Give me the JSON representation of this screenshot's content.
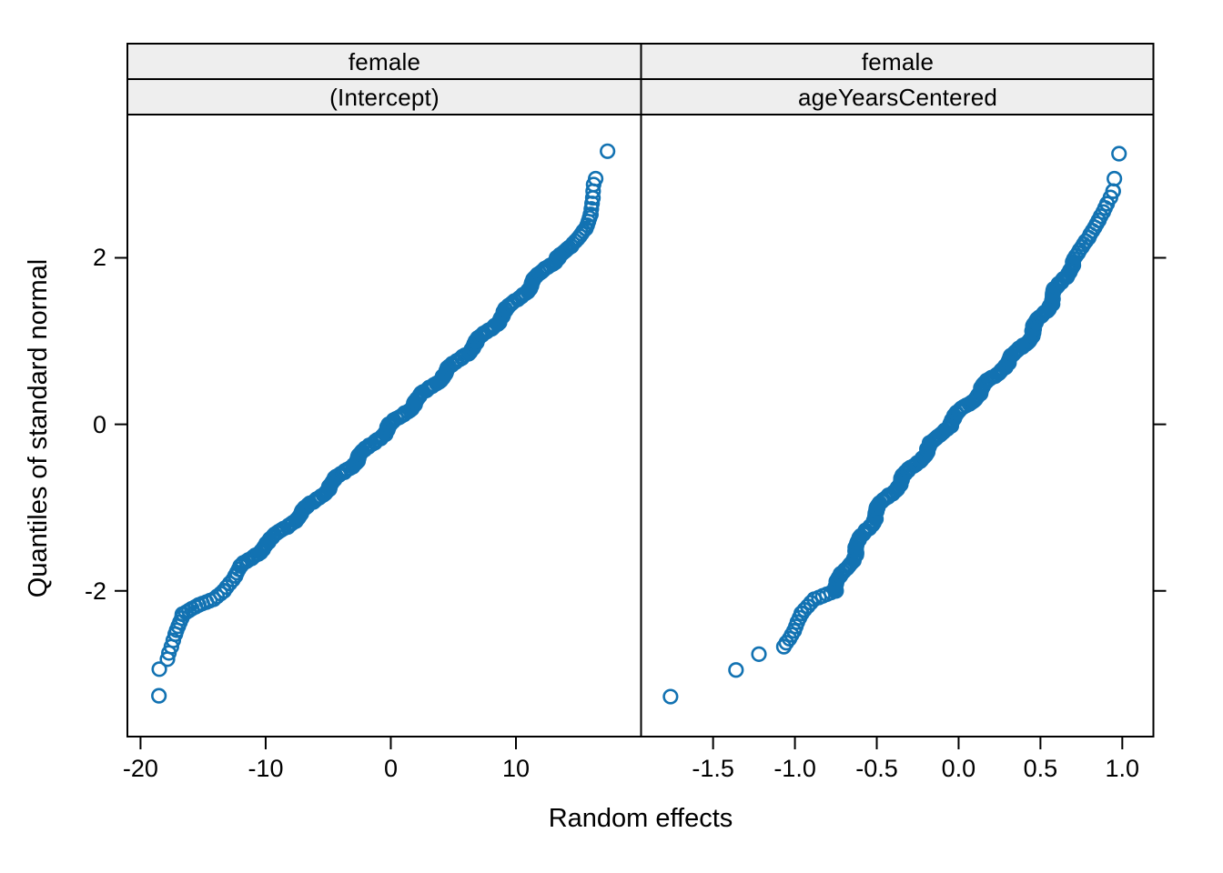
{
  "figure": {
    "background": "#ffffff",
    "border_color": "#000000",
    "strip_fill": "#eeeeee"
  },
  "chart_data": {
    "type": "scatter",
    "subtype": "qq-plot-lattice",
    "title": "",
    "xlabel": "Random effects",
    "ylabel": "Quantiles of standard normal",
    "grid": "off",
    "legend": "none",
    "ylim": [
      -3.75,
      3.72
    ],
    "y_ticks": [
      -2,
      0,
      2
    ],
    "y_tick_labels": [
      "-2",
      "0",
      "2"
    ],
    "style": {
      "color": "#1272b2",
      "marker": "open-circle",
      "marker_radius_px": 7.3,
      "marker_stroke_px": 2.6,
      "strip_fill": "#eeeeee",
      "line_color": "#000000"
    },
    "segment_format": [
      "x_start",
      "y_start",
      "x_end",
      "y_end",
      "n_points"
    ],
    "panels": [
      {
        "strip_labels": [
          "female",
          "(Intercept)"
        ],
        "xlim": [
          -21.05,
          20.0
        ],
        "x_ticks": [
          -20,
          -10,
          0,
          10
        ],
        "x_tick_labels": [
          "-20",
          "-10",
          "0",
          "10"
        ],
        "jitter_x": 0.3,
        "curve_segments": [
          [
            -17.9,
            -2.82,
            -17.3,
            -2.52,
            5
          ],
          [
            -17.3,
            -2.52,
            -16.6,
            -2.28,
            6
          ],
          [
            -16.6,
            -2.28,
            -15.3,
            -2.17,
            6
          ],
          [
            -15.3,
            -2.17,
            -14.2,
            -2.1,
            5
          ],
          [
            -14.2,
            -2.1,
            -13.4,
            -2.0,
            4
          ],
          [
            -13.4,
            -2.0,
            -12.4,
            -1.82,
            5
          ],
          [
            -12.4,
            -1.82,
            -11.9,
            -1.7,
            4
          ],
          [
            -11.9,
            -1.7,
            -6.6,
            -1.0,
            40
          ],
          [
            -6.6,
            -1.0,
            0.1,
            0.0,
            60
          ],
          [
            0.1,
            0.0,
            7.0,
            1.0,
            60
          ],
          [
            7.0,
            1.0,
            13.2,
            2.0,
            55
          ],
          [
            13.2,
            2.0,
            14.5,
            2.14,
            9
          ],
          [
            14.5,
            2.14,
            15.5,
            2.35,
            8
          ],
          [
            15.5,
            2.35,
            15.95,
            2.52,
            5
          ],
          [
            15.95,
            2.52,
            16.2,
            2.72,
            4
          ],
          [
            16.2,
            2.72,
            16.3,
            2.88,
            3
          ]
        ],
        "outlier_points": [
          [
            -18.53,
            -3.26
          ],
          [
            -18.5,
            -2.94
          ],
          [
            16.37,
            2.95
          ],
          [
            17.32,
            3.28
          ]
        ]
      },
      {
        "strip_labels": [
          "female",
          "ageYearsCentered"
        ],
        "xlim": [
          -1.94,
          1.19
        ],
        "x_ticks": [
          -1.5,
          -1.0,
          -0.5,
          0.0,
          0.5,
          1.0
        ],
        "x_tick_labels": [
          "-1.5",
          "-1.0",
          "-0.5",
          "0.0",
          "0.5",
          "1.0"
        ],
        "jitter_x": 0.023,
        "curve_segments": [
          [
            -1.07,
            -2.67,
            -1.0,
            -2.48,
            5
          ],
          [
            -1.0,
            -2.48,
            -0.955,
            -2.27,
            5
          ],
          [
            -0.955,
            -2.27,
            -0.885,
            -2.1,
            5
          ],
          [
            -0.885,
            -2.1,
            -0.76,
            -2.0,
            6
          ],
          [
            -0.76,
            -2.0,
            -0.49,
            -1.0,
            45
          ],
          [
            -0.49,
            -1.0,
            -0.06,
            0.0,
            55
          ],
          [
            -0.06,
            0.0,
            0.42,
            1.0,
            58
          ],
          [
            0.42,
            1.0,
            0.7,
            1.95,
            48
          ],
          [
            0.7,
            1.95,
            0.78,
            2.2,
            8
          ],
          [
            0.78,
            2.2,
            0.85,
            2.45,
            7
          ],
          [
            0.85,
            2.45,
            0.91,
            2.65,
            5
          ],
          [
            0.91,
            2.65,
            0.95,
            2.8,
            3
          ],
          [
            0.95,
            2.8,
            0.96,
            2.95,
            2
          ]
        ],
        "outlier_points": [
          [
            -1.76,
            -3.27
          ],
          [
            -1.36,
            -2.95
          ],
          [
            -1.22,
            -2.76
          ],
          [
            0.98,
            3.25
          ]
        ]
      }
    ]
  }
}
